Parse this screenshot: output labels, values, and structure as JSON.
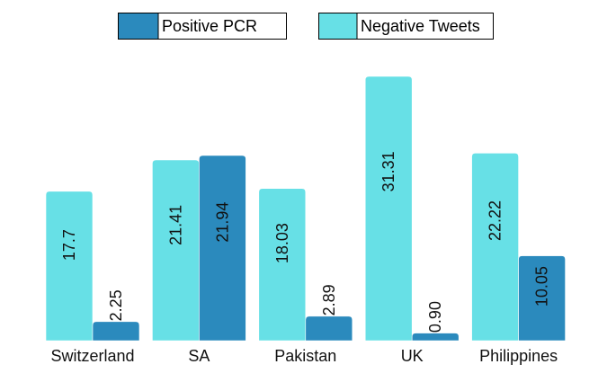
{
  "chart_data": {
    "type": "bar",
    "title": "",
    "xlabel": "",
    "ylabel": "",
    "categories": [
      "Switzerland",
      "SA",
      "Pakistan",
      "UK",
      "Philippines"
    ],
    "series": [
      {
        "name": "Negative Tweets",
        "values": [
          17.7,
          21.41,
          18.03,
          31.31,
          22.22
        ],
        "labels": [
          "17.7",
          "21.41",
          "18.03",
          "31.31",
          "22.22"
        ],
        "color": "#67e0e6"
      },
      {
        "name": "Positive PCR",
        "values": [
          2.25,
          21.94,
          2.89,
          0.9,
          10.05
        ],
        "labels": [
          "2.25",
          "21.94",
          "2.89",
          "0.90",
          "10.05"
        ],
        "color": "#2b8abd"
      }
    ],
    "legend": {
      "placement": "top-center",
      "order": [
        "Positive PCR",
        "Negative Tweets"
      ]
    },
    "ylim": [
      0,
      31.31
    ],
    "grid": false,
    "axes_visible": false
  }
}
